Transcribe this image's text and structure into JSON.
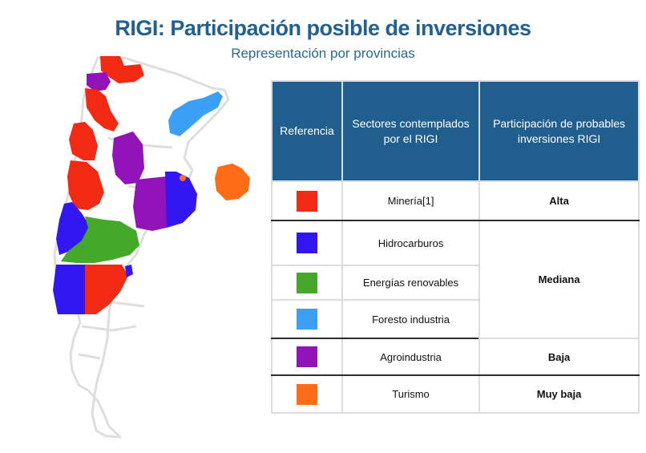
{
  "title": "RIGI: Participación posible de inversiones",
  "subtitle": "Representación por provincias",
  "table": {
    "headers": [
      "Referencia",
      "Sectores contemplados por el RIGI",
      "Participación de probables inversiones RIGI"
    ],
    "rows": [
      {
        "color": "#f22a13",
        "sector": "Minería[1]",
        "participation": "Alta"
      },
      {
        "color": "#3317f2",
        "sector": "Hidrocarburos",
        "participation": "Mediana"
      },
      {
        "color": "#44a829",
        "sector": "Energías renovables",
        "participation": ""
      },
      {
        "color": "#3ba0f5",
        "sector": "Foresto industria",
        "participation": ""
      },
      {
        "color": "#9214b8",
        "sector": "Agroindustria",
        "participation": "Baja"
      },
      {
        "color": "#ff6c17",
        "sector": "Turismo",
        "participation": "Muy baja"
      }
    ]
  },
  "map": {
    "outline_color": "#dedede",
    "fill_colors": {
      "mineria": "#f22a13",
      "hidrocarburos": "#3317f2",
      "renovables": "#44a829",
      "foresto": "#3ba0f5",
      "agro": "#9214b8",
      "turismo": "#ff6c17"
    }
  }
}
